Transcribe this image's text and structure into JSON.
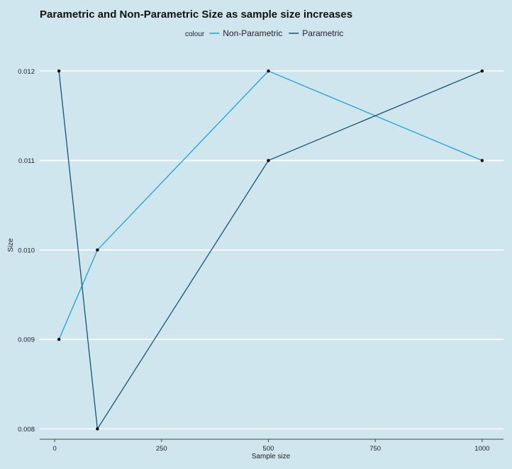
{
  "chart_data": {
    "type": "line",
    "title": "Parametric and Non-Parametric Size as sample size increases",
    "xlabel": "Sample size",
    "ylabel": "Size",
    "xlim": [
      -35,
      1050
    ],
    "ylim": [
      0.0079,
      0.0122
    ],
    "x_ticks": [
      0,
      250,
      500,
      750,
      1000
    ],
    "x_tick_labels": [
      "0",
      "250",
      "500",
      "750",
      "1000"
    ],
    "y_ticks": [
      0.008,
      0.009,
      0.01,
      0.011,
      0.012
    ],
    "y_tick_labels": [
      "0.008",
      "0.009",
      "0.010",
      "0.011",
      "0.012"
    ],
    "grid": "horizontal",
    "legend": {
      "title": "colour",
      "placement": "top"
    },
    "x": [
      10,
      100,
      500,
      1000
    ],
    "series": [
      {
        "name": "Non-Parametric",
        "color": "#1ba1d6",
        "values": [
          0.009,
          0.01,
          0.012,
          0.011
        ]
      },
      {
        "name": "Parametric",
        "color": "#175470",
        "values": [
          0.012,
          0.008,
          0.011,
          0.012
        ]
      }
    ],
    "point_color": "#000000"
  }
}
